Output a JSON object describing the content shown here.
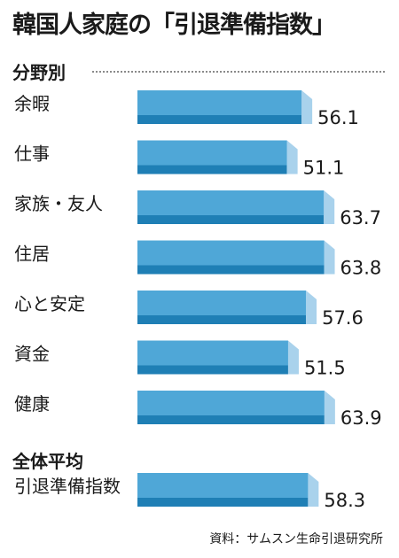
{
  "title": "韓国人家庭の「引退準備指数」",
  "source": "資料：サムスン生命引退研究所",
  "colors": {
    "bar_face": "#4fa7d7",
    "bar_bottom": "#1f7fb5",
    "bar_side": "#a9d2ec",
    "text": "#1a1a1a",
    "divider": "#8a8a8a"
  },
  "chart_data": [
    {
      "type": "bar",
      "orientation": "horizontal",
      "style": "3d",
      "section_title": "分野別",
      "categories": [
        "余暇",
        "仕事",
        "家族・友人",
        "住居",
        "心と安定",
        "資金",
        "健康"
      ],
      "values": [
        56.1,
        51.1,
        63.7,
        63.8,
        57.6,
        51.5,
        63.9
      ],
      "value_labels": [
        "56.1",
        "51.1",
        "63.7",
        "63.8",
        "57.6",
        "51.5",
        "63.9"
      ]
    },
    {
      "type": "bar",
      "orientation": "horizontal",
      "style": "3d",
      "section_title": "全体平均",
      "categories": [
        "引退準備指数"
      ],
      "values": [
        58.3
      ],
      "value_labels": [
        "58.3"
      ]
    }
  ]
}
